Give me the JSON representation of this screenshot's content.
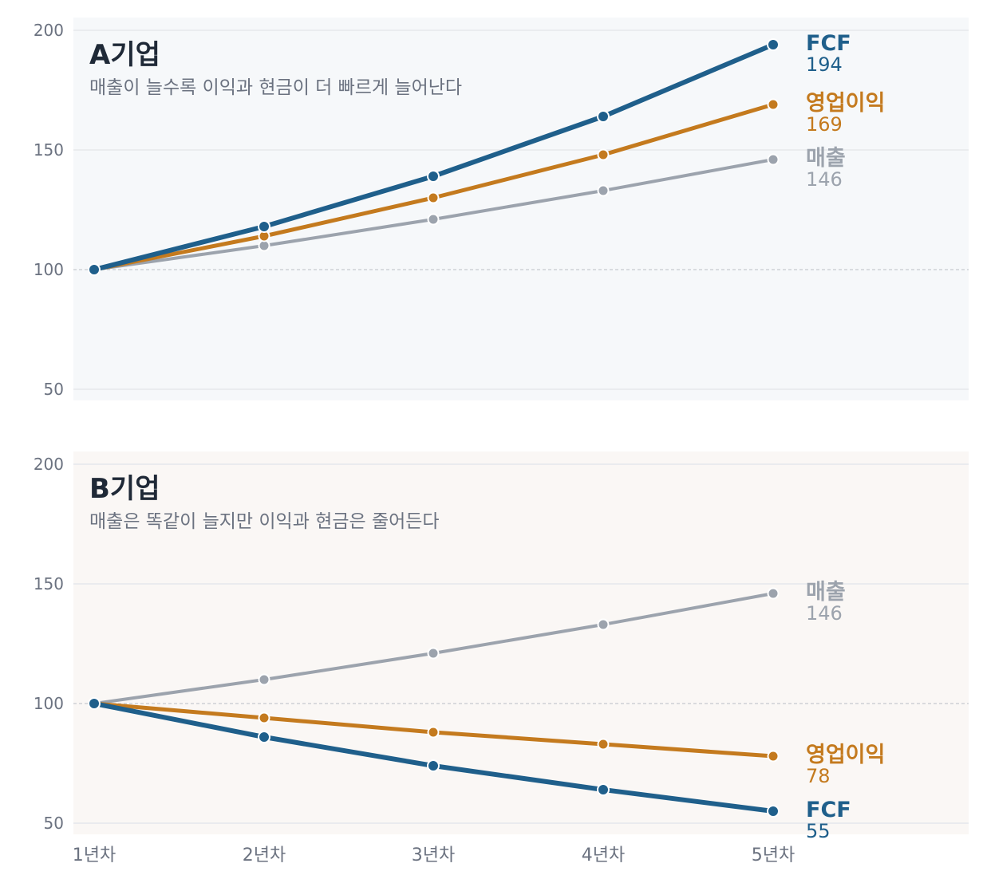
{
  "colors": {
    "fcf": "#1f5f8b",
    "op": "#c47a1e",
    "sales": "#9ca3ad",
    "panel_a_bg": "#f6f8fa",
    "panel_b_bg": "#faf7f5",
    "grid": "#e5e7eb",
    "baseline": "#c5c9cf"
  },
  "x_labels": [
    "1년차",
    "2년차",
    "3년차",
    "4년차",
    "5년차"
  ],
  "y_ticks": [
    "50",
    "100",
    "150",
    "200"
  ],
  "panels": [
    {
      "title": "A기업",
      "subtitle": "매출이 늘수록 이익과 현금이 더 빠르게 늘어난다",
      "series": [
        {
          "key": "sales",
          "label": "매출",
          "end_value": "146"
        },
        {
          "key": "op",
          "label": "영업이익",
          "end_value": "169"
        },
        {
          "key": "fcf",
          "label": "FCF",
          "end_value": "194"
        }
      ]
    },
    {
      "title": "B기업",
      "subtitle": "매출은 똑같이 늘지만 이익과 현금은 줄어든다",
      "series": [
        {
          "key": "sales",
          "label": "매출",
          "end_value": "146"
        },
        {
          "key": "op",
          "label": "영업이익",
          "end_value": "78"
        },
        {
          "key": "fcf",
          "label": "FCF",
          "end_value": "55"
        }
      ]
    }
  ],
  "chart_data": [
    {
      "type": "line",
      "title": "A기업",
      "subtitle": "매출이 늘수록 이익과 현금이 더 빠르게 늘어난다",
      "categories": [
        "1년차",
        "2년차",
        "3년차",
        "4년차",
        "5년차"
      ],
      "ylim": [
        45,
        205
      ],
      "y_ticks": [
        50,
        100,
        150,
        200
      ],
      "reference_line": 100,
      "grid": true,
      "legend": "direct labels at right end of lines",
      "series": [
        {
          "name": "매출",
          "values": [
            100,
            110,
            121,
            133,
            146
          ]
        },
        {
          "name": "영업이익",
          "values": [
            100,
            114,
            130,
            148,
            169
          ]
        },
        {
          "name": "FCF",
          "values": [
            100,
            118,
            139,
            164,
            194
          ]
        }
      ]
    },
    {
      "type": "line",
      "title": "B기업",
      "subtitle": "매출은 똑같이 늘지만 이익과 현금은 줄어든다",
      "categories": [
        "1년차",
        "2년차",
        "3년차",
        "4년차",
        "5년차"
      ],
      "ylim": [
        45,
        205
      ],
      "y_ticks": [
        50,
        100,
        150,
        200
      ],
      "reference_line": 100,
      "grid": true,
      "legend": "direct labels at right end of lines",
      "series": [
        {
          "name": "매출",
          "values": [
            100,
            110,
            121,
            133,
            146
          ]
        },
        {
          "name": "영업이익",
          "values": [
            100,
            94,
            88,
            83,
            78
          ]
        },
        {
          "name": "FCF",
          "values": [
            100,
            86,
            74,
            64,
            55
          ]
        }
      ]
    }
  ]
}
